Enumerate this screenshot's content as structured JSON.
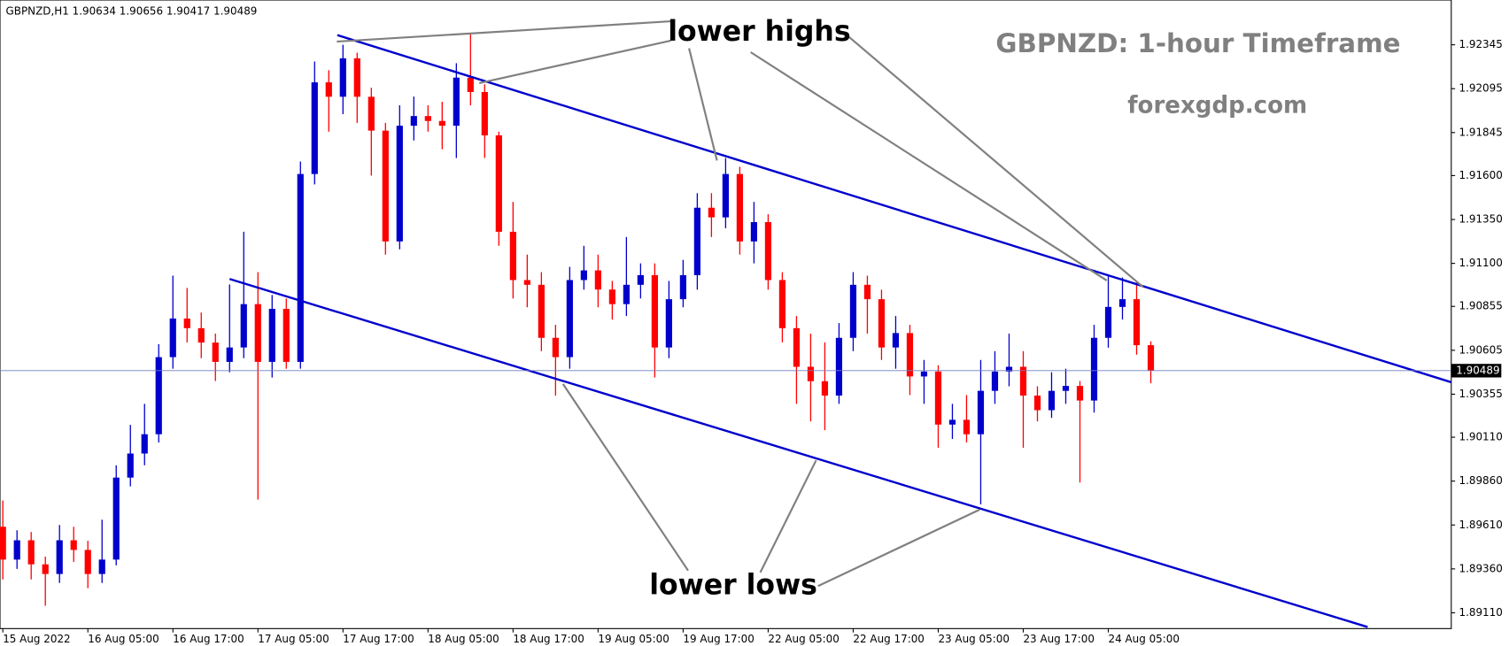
{
  "chart_data": {
    "type": "candlestick",
    "header": "GBPNZD,H1 1.90634 1.90656 1.90417 1.90489",
    "title": "GBPNZD: 1-hour Timeframe",
    "subtitle": "forexgdp.com",
    "annotations": [
      "lower highs",
      "lower lows"
    ],
    "up_color": "#0000cd",
    "down_color": "#ff0000",
    "open": [
      1.896,
      1.89413,
      1.89523,
      1.89386,
      1.89331,
      1.89523,
      1.89468,
      1.89331,
      1.89413,
      1.8988,
      1.90017,
      1.90127,
      1.90566,
      1.90786,
      1.90731,
      1.90649,
      1.90539,
      1.90621,
      1.90868,
      1.90539,
      1.90841,
      1.90539,
      1.91609,
      1.92131,
      1.92049,
      1.92268,
      1.92049,
      1.91856,
      1.91225,
      1.91884,
      1.91939,
      1.91911,
      1.91884,
      1.92158,
      1.92076,
      1.91829,
      1.9128,
      1.91005,
      1.90978,
      1.90676,
      1.90566,
      1.91005,
      1.9106,
      1.90951,
      1.90868,
      1.90978,
      1.91033,
      1.90621,
      1.90896,
      1.91033,
      1.91417,
      1.91362,
      1.91609,
      1.91225,
      1.91335,
      1.91005,
      1.90731,
      1.90511,
      1.90429,
      1.90347,
      1.90676,
      1.90978,
      1.90896,
      1.90621,
      1.90703,
      1.90456,
      1.90484,
      1.90182,
      1.90209,
      1.90127,
      1.90374,
      1.90484,
      1.90511,
      1.90347,
      1.90264,
      1.90374,
      1.90402,
      1.90319,
      1.90676,
      1.90852,
      1.90896,
      1.90634
    ],
    "high": [
      1.8975,
      1.8958,
      1.8957,
      1.8943,
      1.8961,
      1.896,
      1.8952,
      1.8964,
      1.8995,
      1.9018,
      1.903,
      1.9064,
      1.9103,
      1.9096,
      1.9082,
      1.907,
      1.9098,
      1.9128,
      1.9105,
      1.9092,
      1.909,
      1.9168,
      1.9225,
      1.922,
      1.92345,
      1.923,
      1.921,
      1.919,
      1.92,
      1.9205,
      1.92,
      1.9202,
      1.9224,
      1.92405,
      1.9212,
      1.9185,
      1.9145,
      1.9115,
      1.9105,
      1.9075,
      1.9108,
      1.912,
      1.9115,
      1.91,
      1.9125,
      1.911,
      1.911,
      1.91,
      1.9112,
      1.915,
      1.915,
      1.917,
      1.9165,
      1.9145,
      1.9138,
      1.9105,
      1.908,
      1.907,
      1.9065,
      1.9076,
      1.9105,
      1.9103,
      1.9095,
      1.908,
      1.9075,
      1.9055,
      1.9052,
      1.903,
      1.9035,
      1.9055,
      1.906,
      1.907,
      1.906,
      1.904,
      1.9048,
      1.905,
      1.9043,
      1.9075,
      1.9103,
      1.9102,
      1.91,
      1.90656
    ],
    "low": [
      1.893,
      1.8936,
      1.893,
      1.8915,
      1.8928,
      1.894,
      1.8925,
      1.8928,
      1.8938,
      1.8983,
      1.8995,
      1.9008,
      1.905,
      1.9065,
      1.9056,
      1.9043,
      1.9048,
      1.9056,
      1.89755,
      1.9045,
      1.905,
      1.905,
      1.9155,
      1.9185,
      1.9195,
      1.919,
      1.916,
      1.9115,
      1.9118,
      1.918,
      1.9185,
      1.9175,
      1.917,
      1.92,
      1.917,
      1.912,
      1.909,
      1.9085,
      1.906,
      1.90347,
      1.905,
      1.9095,
      1.9085,
      1.9078,
      1.908,
      1.909,
      1.9045,
      1.9056,
      1.9085,
      1.9095,
      1.9125,
      1.913,
      1.9115,
      1.911,
      1.9095,
      1.9065,
      1.903,
      1.902,
      1.9015,
      1.903,
      1.906,
      1.907,
      1.9055,
      1.905,
      1.9035,
      1.903,
      1.9005,
      1.901,
      1.9008,
      1.89728,
      1.903,
      1.904,
      1.9005,
      1.902,
      1.9022,
      1.903,
      1.89852,
      1.9025,
      1.9062,
      1.9078,
      1.9058,
      1.90417
    ],
    "close": [
      1.89413,
      1.89523,
      1.89386,
      1.89331,
      1.89523,
      1.89468,
      1.89331,
      1.89413,
      1.8988,
      1.90017,
      1.90127,
      1.90566,
      1.90786,
      1.90731,
      1.90649,
      1.90539,
      1.90621,
      1.90868,
      1.90539,
      1.90841,
      1.90539,
      1.91609,
      1.92131,
      1.92049,
      1.92268,
      1.92049,
      1.91856,
      1.91225,
      1.91884,
      1.91939,
      1.91911,
      1.91884,
      1.92158,
      1.92076,
      1.91829,
      1.9128,
      1.91005,
      1.90978,
      1.90676,
      1.90566,
      1.91005,
      1.9106,
      1.90951,
      1.90868,
      1.90978,
      1.91033,
      1.90621,
      1.90896,
      1.91033,
      1.91417,
      1.91362,
      1.91609,
      1.91225,
      1.91335,
      1.91005,
      1.90731,
      1.90511,
      1.90429,
      1.90347,
      1.90676,
      1.90978,
      1.90896,
      1.90621,
      1.90703,
      1.90456,
      1.90484,
      1.90182,
      1.90209,
      1.90127,
      1.90374,
      1.90484,
      1.90511,
      1.90347,
      1.90264,
      1.90374,
      1.90402,
      1.90319,
      1.90676,
      1.90852,
      1.90896,
      1.90634,
      1.90489
    ],
    "last_price": 1.90489,
    "trendlines": [
      {
        "color": "#0000cd",
        "x": [
          23.6,
          102.2
        ],
        "y": [
          1.924,
          1.90423
        ]
      },
      {
        "color": "#0000cd",
        "x": [
          16,
          96.3
        ],
        "y": [
          1.91011,
          1.89029
        ]
      }
    ],
    "xlim": [
      -0.2,
      102.2
    ],
    "xticks": [
      {
        "value": 0,
        "label": "15 Aug 2022"
      },
      {
        "value": 6,
        "label": "16 Aug 05:00"
      },
      {
        "value": 12,
        "label": "16 Aug 17:00"
      },
      {
        "value": 18,
        "label": "17 Aug 05:00"
      },
      {
        "value": 24,
        "label": "17 Aug 17:00"
      },
      {
        "value": 30,
        "label": "18 Aug 05:00"
      },
      {
        "value": 36,
        "label": "18 Aug 17:00"
      },
      {
        "value": 42,
        "label": "19 Aug 05:00"
      },
      {
        "value": 48,
        "label": "19 Aug 17:00"
      },
      {
        "value": 54,
        "label": "22 Aug 05:00"
      },
      {
        "value": 60,
        "label": "22 Aug 17:00"
      },
      {
        "value": 66,
        "label": "23 Aug 05:00"
      },
      {
        "value": 72,
        "label": "23 Aug 17:00"
      },
      {
        "value": 78,
        "label": "24 Aug 05:00"
      }
    ],
    "ylim": [
      1.8902,
      1.926
    ],
    "yticks": [
      1.92345,
      1.92095,
      1.91845,
      {
        "value": 1.916,
        "label": "1.91600"
      },
      {
        "value": 1.9135,
        "label": "1.91350"
      },
      {
        "value": 1.911,
        "label": "1.91100"
      },
      1.90855,
      1.90605,
      1.90355,
      {
        "value": 1.9011,
        "label": "1.90110"
      },
      {
        "value": 1.8986,
        "label": "1.89860"
      },
      {
        "value": 1.8961,
        "label": "1.89610"
      },
      {
        "value": 1.8936,
        "label": "1.89360"
      },
      {
        "value": 1.8911,
        "label": "1.89110"
      }
    ]
  }
}
